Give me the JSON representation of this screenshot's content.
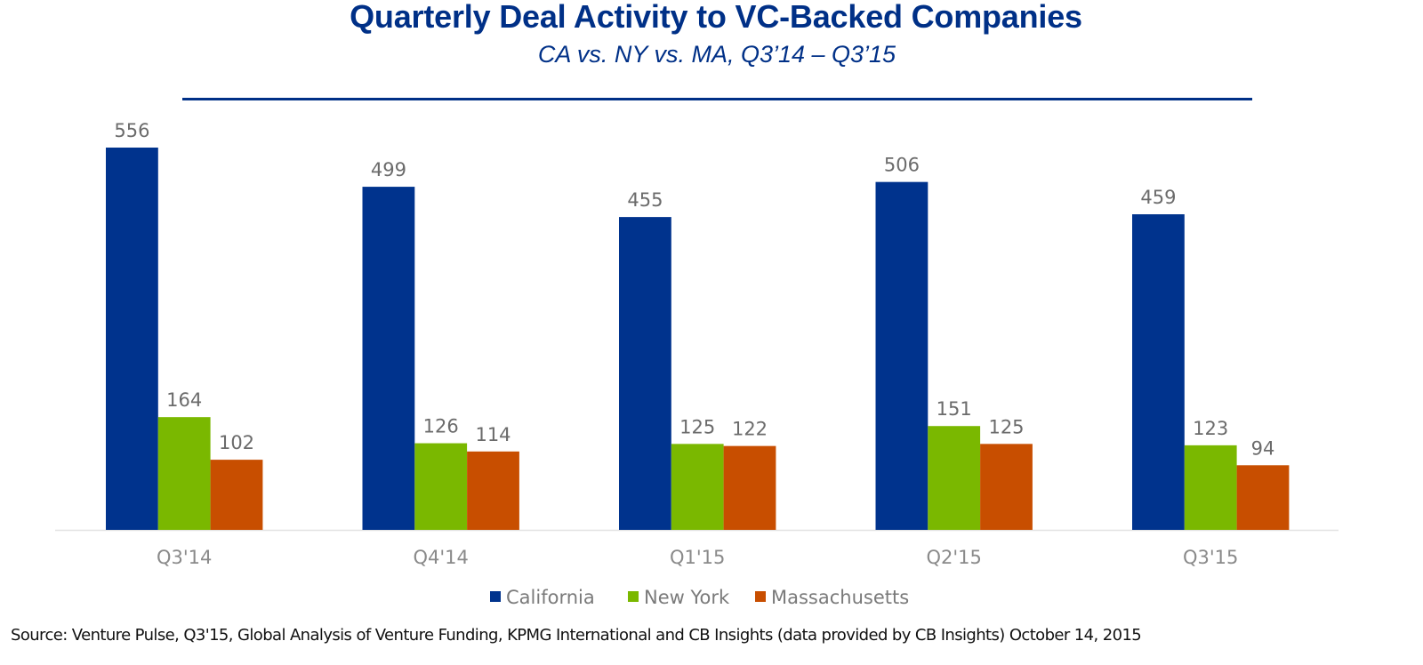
{
  "chart_data": {
    "type": "bar",
    "title": "Quarterly Deal Activity to VC-Backed Companies",
    "subtitle": "CA vs. NY vs. MA, Q3’14 – Q3’15",
    "xlabel": "",
    "ylabel": "",
    "categories": [
      "Q3'14",
      "Q4'14",
      "Q1'15",
      "Q2'15",
      "Q3'15"
    ],
    "series": [
      {
        "name": "California",
        "color": "#00338D",
        "values": [
          556,
          499,
          455,
          506,
          459
        ]
      },
      {
        "name": "New York",
        "color": "#7AB800",
        "values": [
          164,
          126,
          125,
          151,
          123
        ]
      },
      {
        "name": "Massachusetts",
        "color": "#C84E00",
        "values": [
          102,
          114,
          122,
          125,
          94
        ]
      }
    ],
    "ylim": [
      0,
      556
    ],
    "grid": false,
    "data_labels": true,
    "legend_position": "bottom",
    "source": "Source: Venture Pulse, Q3'15, Global Analysis of Venture Funding, KPMG International and CB Insights (data provided by CB Insights) October 14, 2015"
  }
}
